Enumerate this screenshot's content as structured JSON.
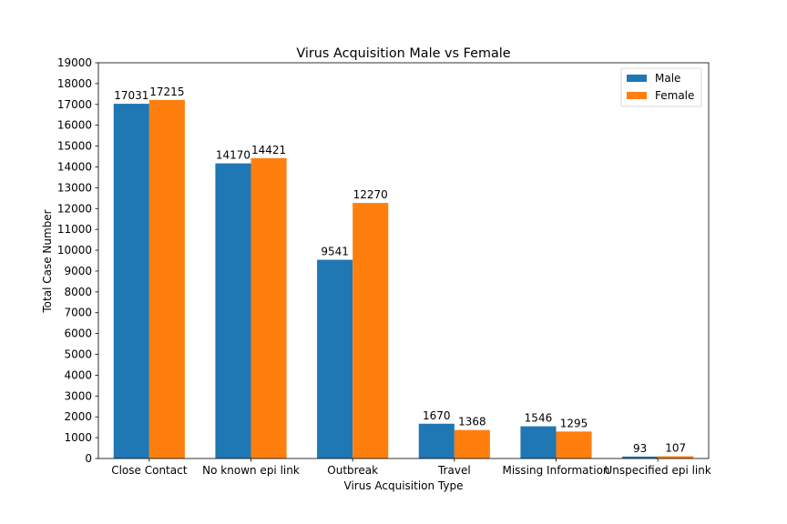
{
  "chart_data": {
    "type": "bar",
    "title": "Virus Acquisition Male vs Female",
    "xlabel": "Virus Acquisition Type",
    "ylabel": "Total Case Number",
    "categories": [
      "Close Contact",
      "No known epi link",
      "Outbreak",
      "Travel",
      "Missing Information",
      "Unspecified epi link"
    ],
    "series": [
      {
        "name": "Male",
        "color": "#1f77b4",
        "values": [
          17031,
          14170,
          9541,
          1670,
          1546,
          93
        ]
      },
      {
        "name": "Female",
        "color": "#ff7f0e",
        "values": [
          17215,
          14421,
          12270,
          1368,
          1295,
          107
        ]
      }
    ],
    "ylim": [
      0,
      19000
    ],
    "yticks": [
      0,
      1000,
      2000,
      3000,
      4000,
      5000,
      6000,
      7000,
      8000,
      9000,
      10000,
      11000,
      12000,
      13000,
      14000,
      15000,
      16000,
      17000,
      18000,
      19000
    ],
    "grid": false,
    "legend_position": "top-right",
    "data_labels": true
  }
}
